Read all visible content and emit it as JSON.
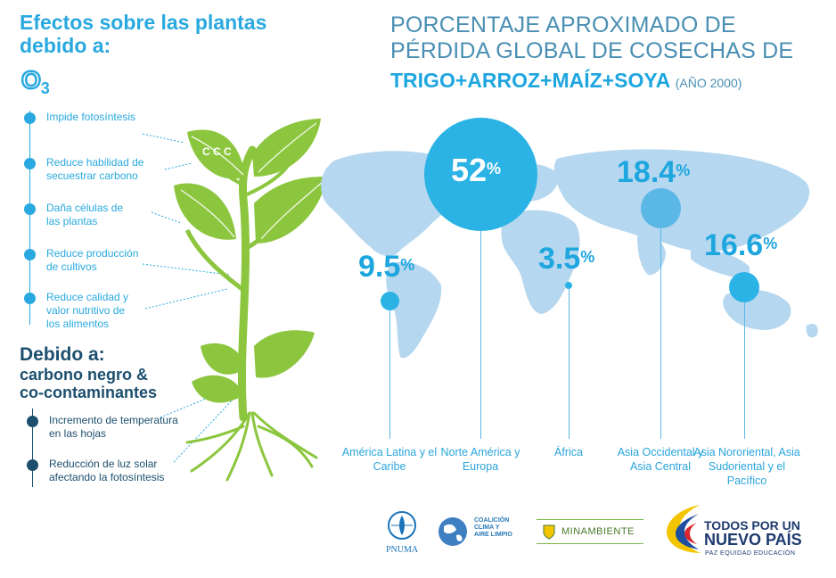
{
  "left": {
    "heading": "Efectos sobre las plantas debido a:",
    "gas": "O",
    "gas_sub": "3",
    "effects": [
      "Impide fotosíntesis",
      "Reduce habilidad de secuestrar carbono",
      "Daña células de las plantas",
      "Reduce producción de cultivos",
      "Reduce calidad y valor nutritivo de los alimentos"
    ],
    "cause_heading1": "Debido a:",
    "cause_heading2": "carbono negro &",
    "cause_heading3": "co-contaminantes",
    "causes": [
      "Incremento de temperatura en las hojas",
      "Reducción de luz solar afectando la fotosíntesis"
    ],
    "leaf_letters": "C C C"
  },
  "title": {
    "line1": "PORCENTAJE APROXIMADO DE",
    "line2": "PÉRDIDA GLOBAL DE COSECHAS DE",
    "line3": "TRIGO+ARROZ+MAÍZ+SOYA",
    "year": "(AÑO 2000)"
  },
  "regions": [
    {
      "name": "América Latina y el Caribe",
      "value": "9.5",
      "unit": "%"
    },
    {
      "name": "Norte América y Europa",
      "value": "52",
      "unit": "%"
    },
    {
      "name": "África",
      "value": "3.5",
      "unit": "%"
    },
    {
      "name": "Asia Occidental y Asia Central",
      "value": "18.4",
      "unit": "%"
    },
    {
      "name": "Asia Nororiental, Asia Sudoriental y el Pacífico",
      "value": "16.6",
      "unit": "%"
    }
  ],
  "logos": {
    "pnuma": "PNUMA",
    "ccac1": "COALICIÓN",
    "ccac2": "CLIMA Y",
    "ccac3": "AIRE LIMPIO",
    "minambiente": "MINAMBIENTE",
    "gov1": "TODOS POR UN",
    "gov2": "NUEVO PAÍS",
    "gov3": "PAZ  EQUIDAD  EDUCACIÓN"
  },
  "colors": {
    "accent": "#1ea6df",
    "dark": "#1c4f6e",
    "map": "#b5d7ef",
    "plant": "#8cc63e"
  }
}
